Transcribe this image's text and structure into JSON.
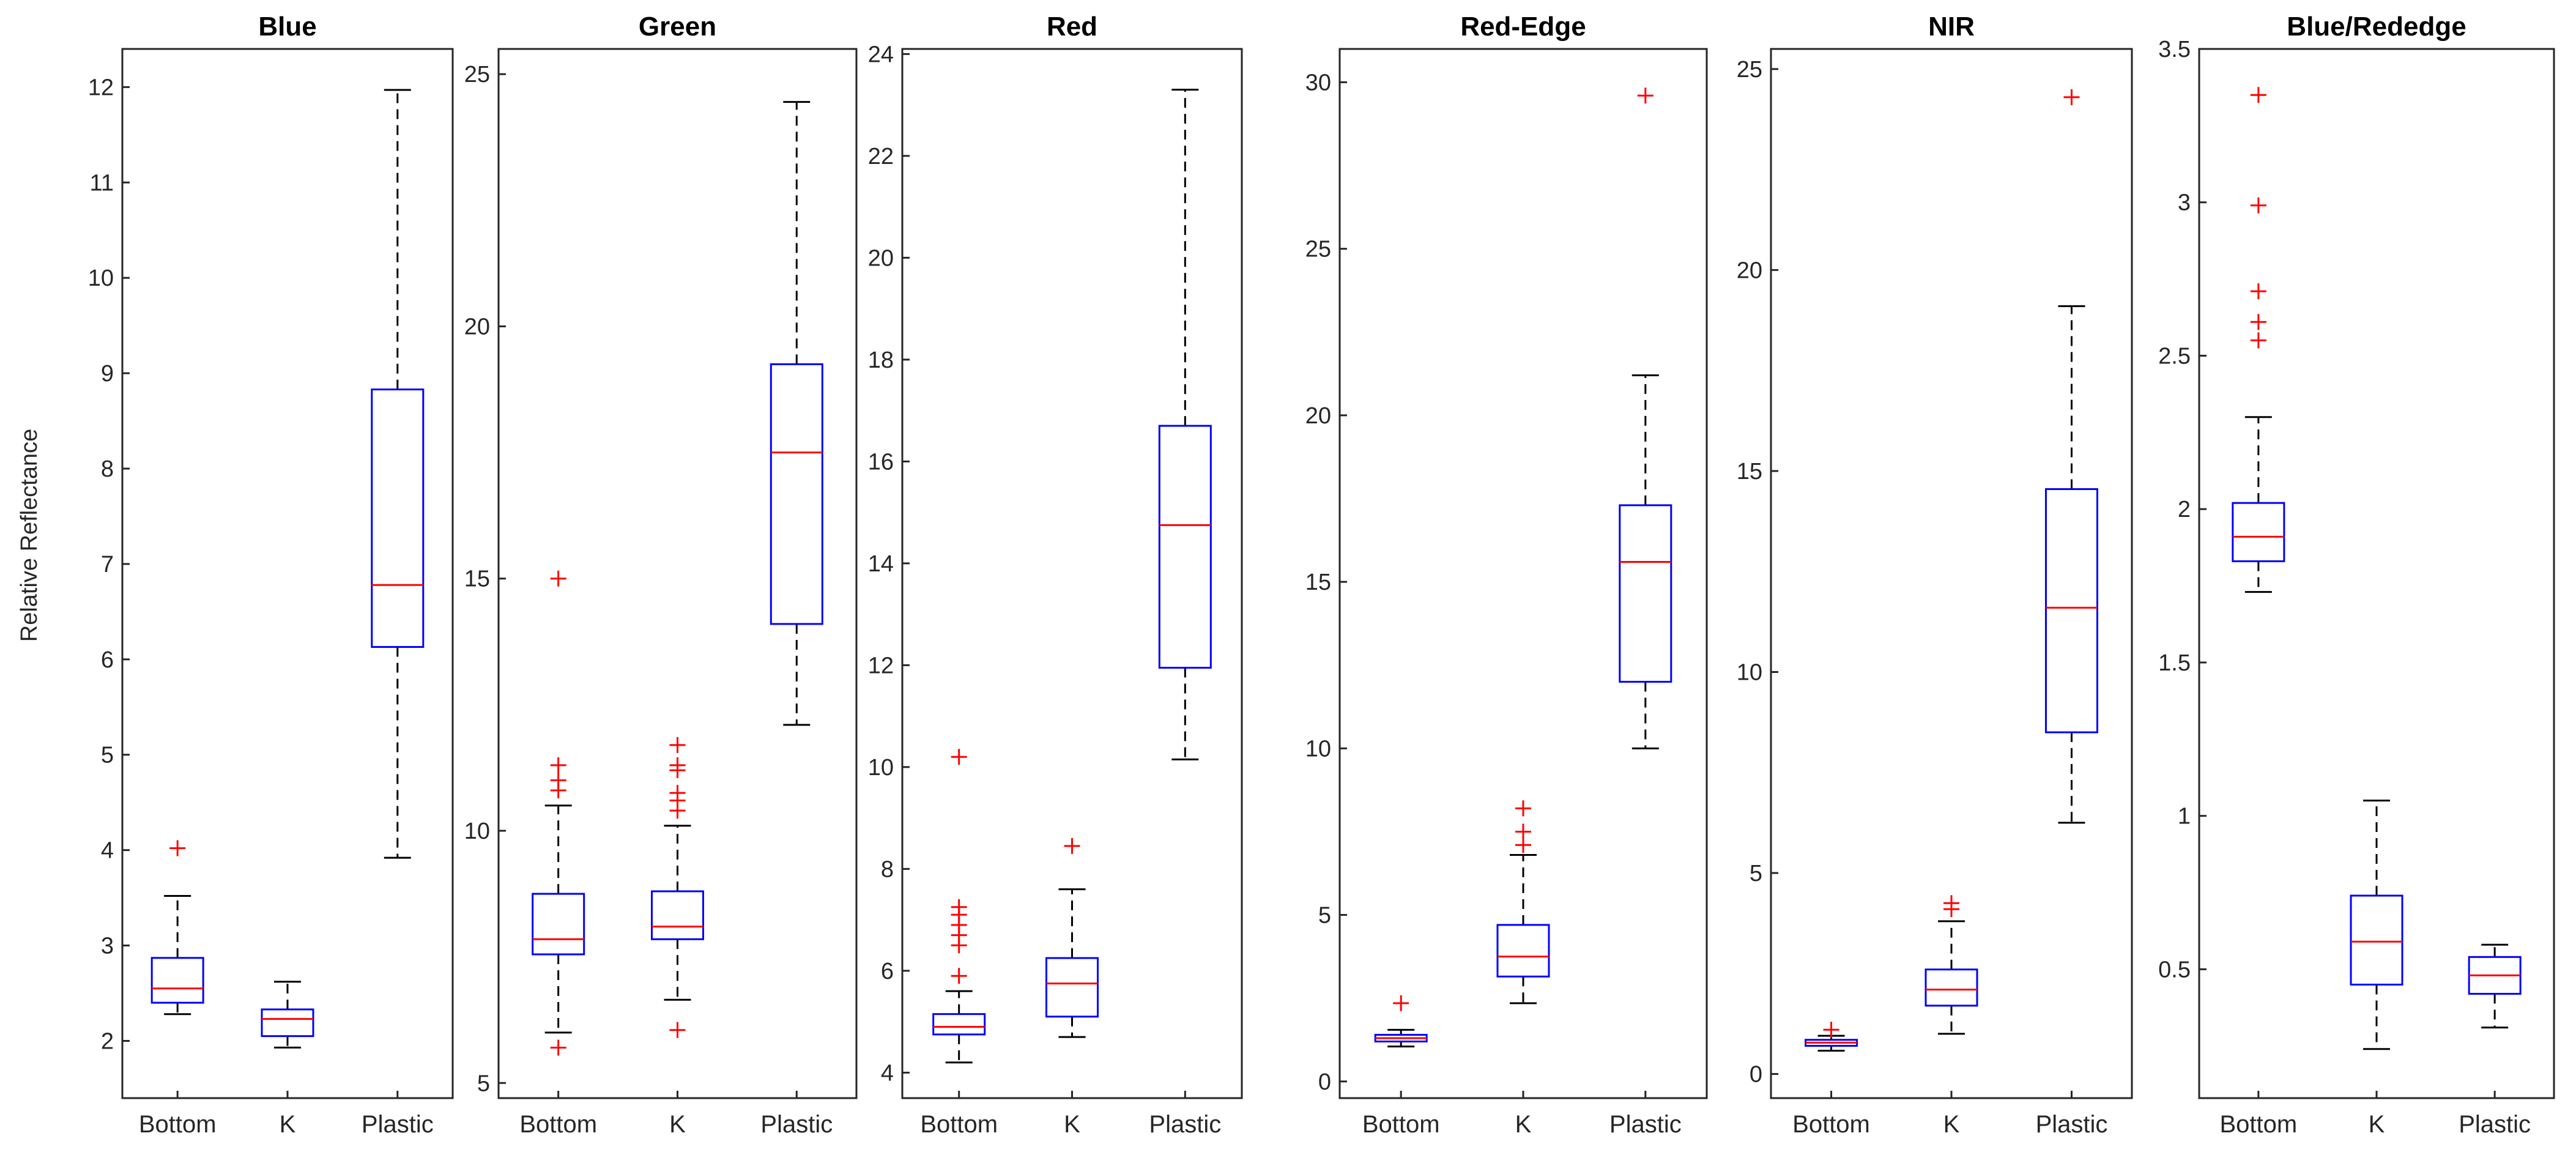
{
  "figure": {
    "ylabel": "Relative Reflectance"
  },
  "chart_data": [
    {
      "type": "box",
      "title": "Blue",
      "categories": [
        "Bottom",
        "K",
        "Plastic"
      ],
      "ylim": [
        1.4,
        12.4
      ],
      "yticks": [
        2,
        3,
        4,
        5,
        6,
        7,
        8,
        9,
        10,
        11,
        12
      ],
      "boxes": [
        {
          "category": "Bottom",
          "q1": 2.4,
          "median": 2.55,
          "q3": 2.87,
          "whisker_low": 2.28,
          "whisker_high": 3.52,
          "outliers": [
            4.02
          ]
        },
        {
          "category": "K",
          "q1": 2.05,
          "median": 2.23,
          "q3": 2.33,
          "whisker_low": 1.93,
          "whisker_high": 2.62,
          "outliers": []
        },
        {
          "category": "Plastic",
          "q1": 6.13,
          "median": 6.78,
          "q3": 8.83,
          "whisker_low": 3.92,
          "whisker_high": 11.97,
          "outliers": []
        }
      ]
    },
    {
      "type": "box",
      "title": "Green",
      "categories": [
        "Bottom",
        "K",
        "Plastic"
      ],
      "ylim": [
        4.7,
        25.5
      ],
      "yticks": [
        5,
        10,
        15,
        20,
        25
      ],
      "boxes": [
        {
          "category": "Bottom",
          "q1": 7.55,
          "median": 7.85,
          "q3": 8.75,
          "whisker_low": 6.0,
          "whisker_high": 10.5,
          "outliers": [
            5.7,
            10.8,
            11.0,
            11.3,
            15.0
          ]
        },
        {
          "category": "K",
          "q1": 7.85,
          "median": 8.1,
          "q3": 8.8,
          "whisker_low": 6.65,
          "whisker_high": 10.1,
          "outliers": [
            6.05,
            10.4,
            10.6,
            10.75,
            11.2,
            11.3,
            11.7
          ]
        },
        {
          "category": "Plastic",
          "q1": 14.1,
          "median": 17.5,
          "q3": 19.25,
          "whisker_low": 12.1,
          "whisker_high": 24.45,
          "outliers": []
        }
      ]
    },
    {
      "type": "box",
      "title": "Red",
      "categories": [
        "Bottom",
        "K",
        "Plastic"
      ],
      "ylim": [
        3.5,
        24.1
      ],
      "yticks": [
        4,
        6,
        8,
        10,
        12,
        14,
        16,
        18,
        20,
        22,
        24
      ],
      "boxes": [
        {
          "category": "Bottom",
          "q1": 4.75,
          "median": 4.9,
          "q3": 5.15,
          "whisker_low": 4.2,
          "whisker_high": 5.6,
          "outliers": [
            5.9,
            6.5,
            6.7,
            6.9,
            7.1,
            7.25,
            10.2
          ]
        },
        {
          "category": "K",
          "q1": 5.1,
          "median": 5.75,
          "q3": 6.25,
          "whisker_low": 4.7,
          "whisker_high": 7.6,
          "outliers": [
            8.45
          ]
        },
        {
          "category": "Plastic",
          "q1": 11.95,
          "median": 14.75,
          "q3": 16.7,
          "whisker_low": 10.15,
          "whisker_high": 23.3,
          "outliers": []
        }
      ]
    },
    {
      "type": "box",
      "title": "Red-Edge",
      "categories": [
        "Bottom",
        "K",
        "Plastic"
      ],
      "ylim": [
        -0.5,
        31.0
      ],
      "yticks": [
        0,
        5,
        10,
        15,
        20,
        25,
        30
      ],
      "boxes": [
        {
          "category": "Bottom",
          "q1": 1.2,
          "median": 1.3,
          "q3": 1.4,
          "whisker_low": 1.05,
          "whisker_high": 1.55,
          "outliers": [
            2.35
          ]
        },
        {
          "category": "K",
          "q1": 3.15,
          "median": 3.75,
          "q3": 4.7,
          "whisker_low": 2.35,
          "whisker_high": 6.8,
          "outliers": [
            7.1,
            7.5,
            8.2
          ]
        },
        {
          "category": "Plastic",
          "q1": 12.0,
          "median": 15.6,
          "q3": 17.3,
          "whisker_low": 10.0,
          "whisker_high": 21.2,
          "outliers": [
            29.6
          ]
        }
      ]
    },
    {
      "type": "box",
      "title": "NIR",
      "categories": [
        "Bottom",
        "K",
        "Plastic"
      ],
      "ylim": [
        -0.6,
        25.5
      ],
      "yticks": [
        0,
        5,
        10,
        15,
        20,
        25
      ],
      "boxes": [
        {
          "category": "Bottom",
          "q1": 0.7,
          "median": 0.78,
          "q3": 0.85,
          "whisker_low": 0.58,
          "whisker_high": 0.95,
          "outliers": [
            1.1
          ]
        },
        {
          "category": "K",
          "q1": 1.7,
          "median": 2.1,
          "q3": 2.6,
          "whisker_low": 1.0,
          "whisker_high": 3.8,
          "outliers": [
            4.1,
            4.25
          ]
        },
        {
          "category": "Plastic",
          "q1": 8.5,
          "median": 11.6,
          "q3": 14.55,
          "whisker_low": 6.25,
          "whisker_high": 19.1,
          "outliers": [
            24.3
          ]
        }
      ]
    },
    {
      "type": "box",
      "title": "Blue/Rededge",
      "categories": [
        "Bottom",
        "K",
        "Plastic"
      ],
      "ylim": [
        0.08,
        3.5
      ],
      "yticks": [
        0.5,
        1,
        1.5,
        2,
        2.5,
        3,
        3.5
      ],
      "boxes": [
        {
          "category": "Bottom",
          "q1": 1.83,
          "median": 1.91,
          "q3": 2.02,
          "whisker_low": 1.73,
          "whisker_high": 2.3,
          "outliers": [
            2.55,
            2.61,
            2.71,
            2.99,
            3.35
          ]
        },
        {
          "category": "K",
          "q1": 0.45,
          "median": 0.59,
          "q3": 0.74,
          "whisker_low": 0.24,
          "whisker_high": 1.05,
          "outliers": []
        },
        {
          "category": "Plastic",
          "q1": 0.42,
          "median": 0.48,
          "q3": 0.54,
          "whisker_low": 0.31,
          "whisker_high": 0.58,
          "outliers": []
        }
      ]
    }
  ]
}
